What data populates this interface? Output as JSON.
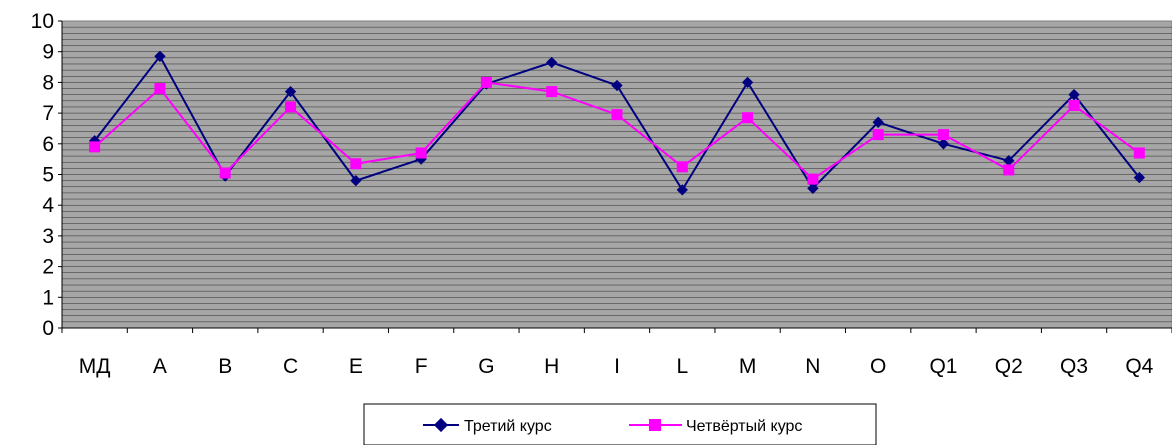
{
  "chart_data": {
    "type": "line",
    "title": "",
    "xlabel": "",
    "ylabel": "",
    "categories": [
      "МД",
      "A",
      "B",
      "C",
      "E",
      "F",
      "G",
      "H",
      "I",
      "L",
      "M",
      "N",
      "O",
      "Q1",
      "Q2",
      "Q3",
      "Q4"
    ],
    "y_ticks": [
      "0",
      "1",
      "2",
      "3",
      "4",
      "5",
      "6",
      "7",
      "8",
      "9",
      "10"
    ],
    "ylim": [
      0,
      10
    ],
    "grid": true,
    "grid_minor_step": 0.2,
    "plot_background": "#A6A6A6",
    "legend_position": "bottom-center",
    "series": [
      {
        "name": "Третий курс",
        "color": "#000080",
        "marker": "diamond",
        "values": [
          6.1,
          8.85,
          4.95,
          7.7,
          4.8,
          5.5,
          7.95,
          8.65,
          7.9,
          4.5,
          8.0,
          4.55,
          6.7,
          6.0,
          5.45,
          7.6,
          4.9
        ]
      },
      {
        "name": "Четвёртый курс",
        "color": "#FF00FF",
        "marker": "square",
        "values": [
          5.9,
          7.8,
          5.05,
          7.2,
          5.35,
          5.7,
          8.0,
          7.7,
          6.95,
          5.25,
          6.85,
          4.85,
          6.3,
          6.3,
          5.15,
          7.25,
          5.7
        ]
      }
    ]
  }
}
